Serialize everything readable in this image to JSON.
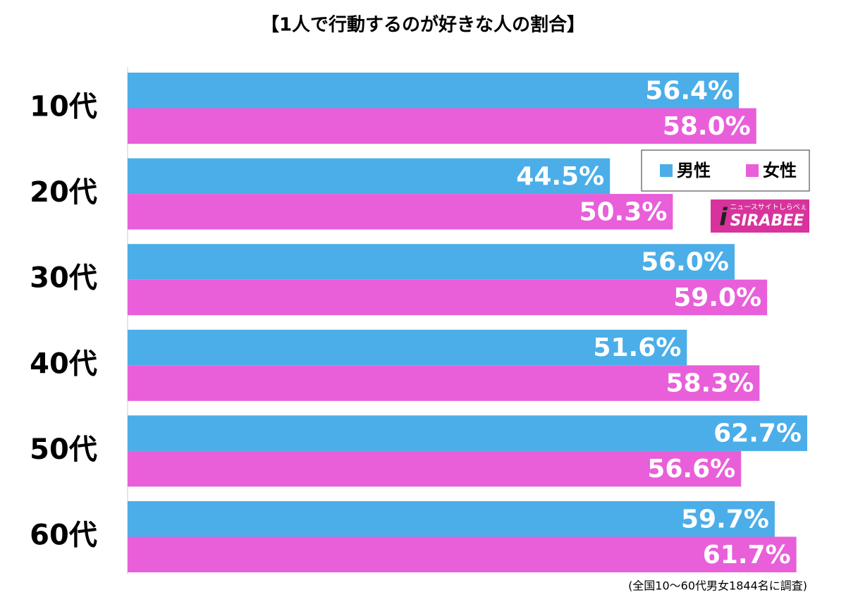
{
  "chart_data": {
    "type": "bar",
    "orientation": "horizontal",
    "title": "【1人で行動するのが好きな人の割合】",
    "categories": [
      "10代",
      "20代",
      "30代",
      "40代",
      "50代",
      "60代"
    ],
    "series": [
      {
        "name": "男性",
        "color": "#4baee8",
        "values": [
          56.4,
          44.5,
          56,
          51.6,
          62.7,
          59.7
        ],
        "value_labels": [
          "56.4%",
          "44.5%",
          "56.0%",
          "51.6%",
          "62.7%",
          "59.7%"
        ]
      },
      {
        "name": "女性",
        "color": "#e85fd9",
        "values": [
          58,
          50.3,
          59,
          58.3,
          56.6,
          61.7
        ],
        "value_labels": [
          "58.0%",
          "50.3%",
          "59.0%",
          "58.3%",
          "56.6%",
          "61.7%"
        ]
      }
    ],
    "note": "(全国10〜60代男女1844名に調査)",
    "logo_name": "SIRABEE",
    "logo_tagline": "ニュースサイトしらべぇ",
    "logo_color": "#d8339c",
    "legend": "upper right"
  }
}
